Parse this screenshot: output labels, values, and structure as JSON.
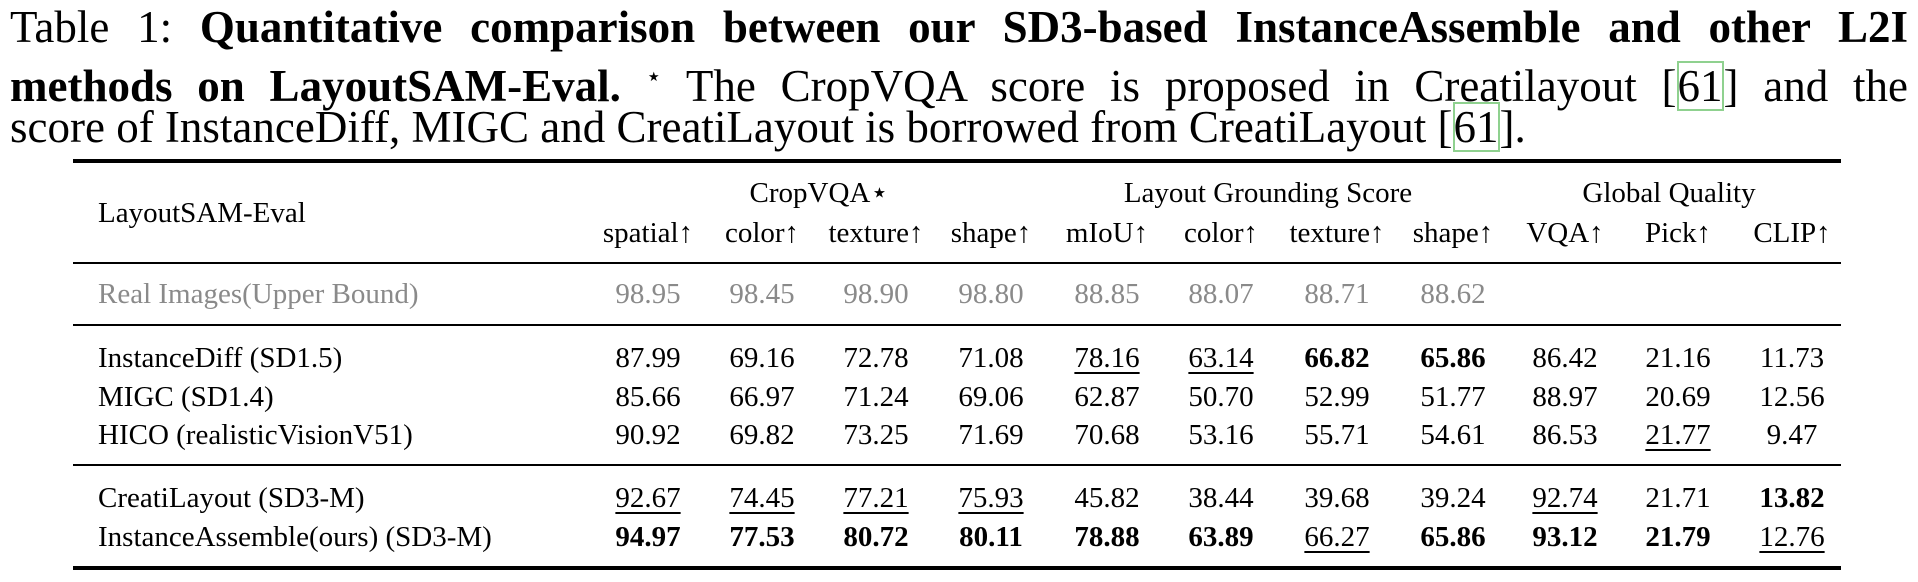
{
  "caption": {
    "label": "Table 1:",
    "bold_line1": "Quantitative comparison between our SD3-based InstanceAssemble and other L2I",
    "bold_line2": "methods on LayoutSAM-Eval.",
    "star": "⋆",
    "text_line2": "The CropVQA score is proposed in Creatilayout",
    "ref": "61",
    "text_line2_end": "and the",
    "text_line3": "score of InstanceDiff, MIGC and CreatiLayout is borrowed from CreatiLayout",
    "text_line3_end": "."
  },
  "table": {
    "corner": "LayoutSAM-Eval",
    "groups": [
      "CropVQA⋆",
      "Layout Grounding Score",
      "Global Quality"
    ],
    "columns": [
      "spatial↑",
      "color↑",
      "texture↑",
      "shape↑",
      "mIoU↑",
      "color↑",
      "texture↑",
      "shape↑",
      "VQA↑",
      "Pick↑",
      "CLIP↑"
    ],
    "sections": [
      [
        {
          "label": "Real Images(Upper Bound)",
          "gray": true,
          "cells": [
            {
              "v": "98.95"
            },
            {
              "v": "98.45"
            },
            {
              "v": "98.90"
            },
            {
              "v": "98.80"
            },
            {
              "v": "88.85"
            },
            {
              "v": "88.07"
            },
            {
              "v": "88.71"
            },
            {
              "v": "88.62"
            },
            {
              "v": ""
            },
            {
              "v": ""
            },
            {
              "v": ""
            }
          ]
        }
      ],
      [
        {
          "label": "InstanceDiff (SD1.5)",
          "cells": [
            {
              "v": "87.99"
            },
            {
              "v": "69.16"
            },
            {
              "v": "72.78"
            },
            {
              "v": "71.08"
            },
            {
              "v": "78.16",
              "u": true
            },
            {
              "v": "63.14",
              "u": true
            },
            {
              "v": "66.82",
              "b": true
            },
            {
              "v": "65.86",
              "b": true
            },
            {
              "v": "86.42"
            },
            {
              "v": "21.16"
            },
            {
              "v": "11.73"
            }
          ]
        },
        {
          "label": "MIGC (SD1.4)",
          "cells": [
            {
              "v": "85.66"
            },
            {
              "v": "66.97"
            },
            {
              "v": "71.24"
            },
            {
              "v": "69.06"
            },
            {
              "v": "62.87"
            },
            {
              "v": "50.70"
            },
            {
              "v": "52.99"
            },
            {
              "v": "51.77"
            },
            {
              "v": "88.97"
            },
            {
              "v": "20.69"
            },
            {
              "v": "12.56"
            }
          ]
        },
        {
          "label": "HICO (realisticVisionV51)",
          "cells": [
            {
              "v": "90.92"
            },
            {
              "v": "69.82"
            },
            {
              "v": "73.25"
            },
            {
              "v": "71.69"
            },
            {
              "v": "70.68"
            },
            {
              "v": "53.16"
            },
            {
              "v": "55.71"
            },
            {
              "v": "54.61"
            },
            {
              "v": "86.53"
            },
            {
              "v": "21.77",
              "u": true
            },
            {
              "v": "9.47"
            }
          ]
        }
      ],
      [
        {
          "label": "CreatiLayout (SD3-M)",
          "cells": [
            {
              "v": "92.67",
              "u": true
            },
            {
              "v": "74.45",
              "u": true
            },
            {
              "v": "77.21",
              "u": true
            },
            {
              "v": "75.93",
              "u": true
            },
            {
              "v": "45.82"
            },
            {
              "v": "38.44"
            },
            {
              "v": "39.68"
            },
            {
              "v": "39.24"
            },
            {
              "v": "92.74",
              "u": true
            },
            {
              "v": "21.71"
            },
            {
              "v": "13.82",
              "b": true
            }
          ]
        },
        {
          "label": "InstanceAssemble(ours) (SD3-M)",
          "cells": [
            {
              "v": "94.97",
              "b": true
            },
            {
              "v": "77.53",
              "b": true
            },
            {
              "v": "80.72",
              "b": true
            },
            {
              "v": "80.11",
              "b": true
            },
            {
              "v": "78.88",
              "b": true
            },
            {
              "v": "63.89",
              "b": true
            },
            {
              "v": "66.27",
              "u": true
            },
            {
              "v": "65.86",
              "b": true
            },
            {
              "v": "93.12",
              "b": true
            },
            {
              "v": "21.79",
              "b": true
            },
            {
              "v": "12.76",
              "u": true
            }
          ]
        }
      ]
    ]
  }
}
